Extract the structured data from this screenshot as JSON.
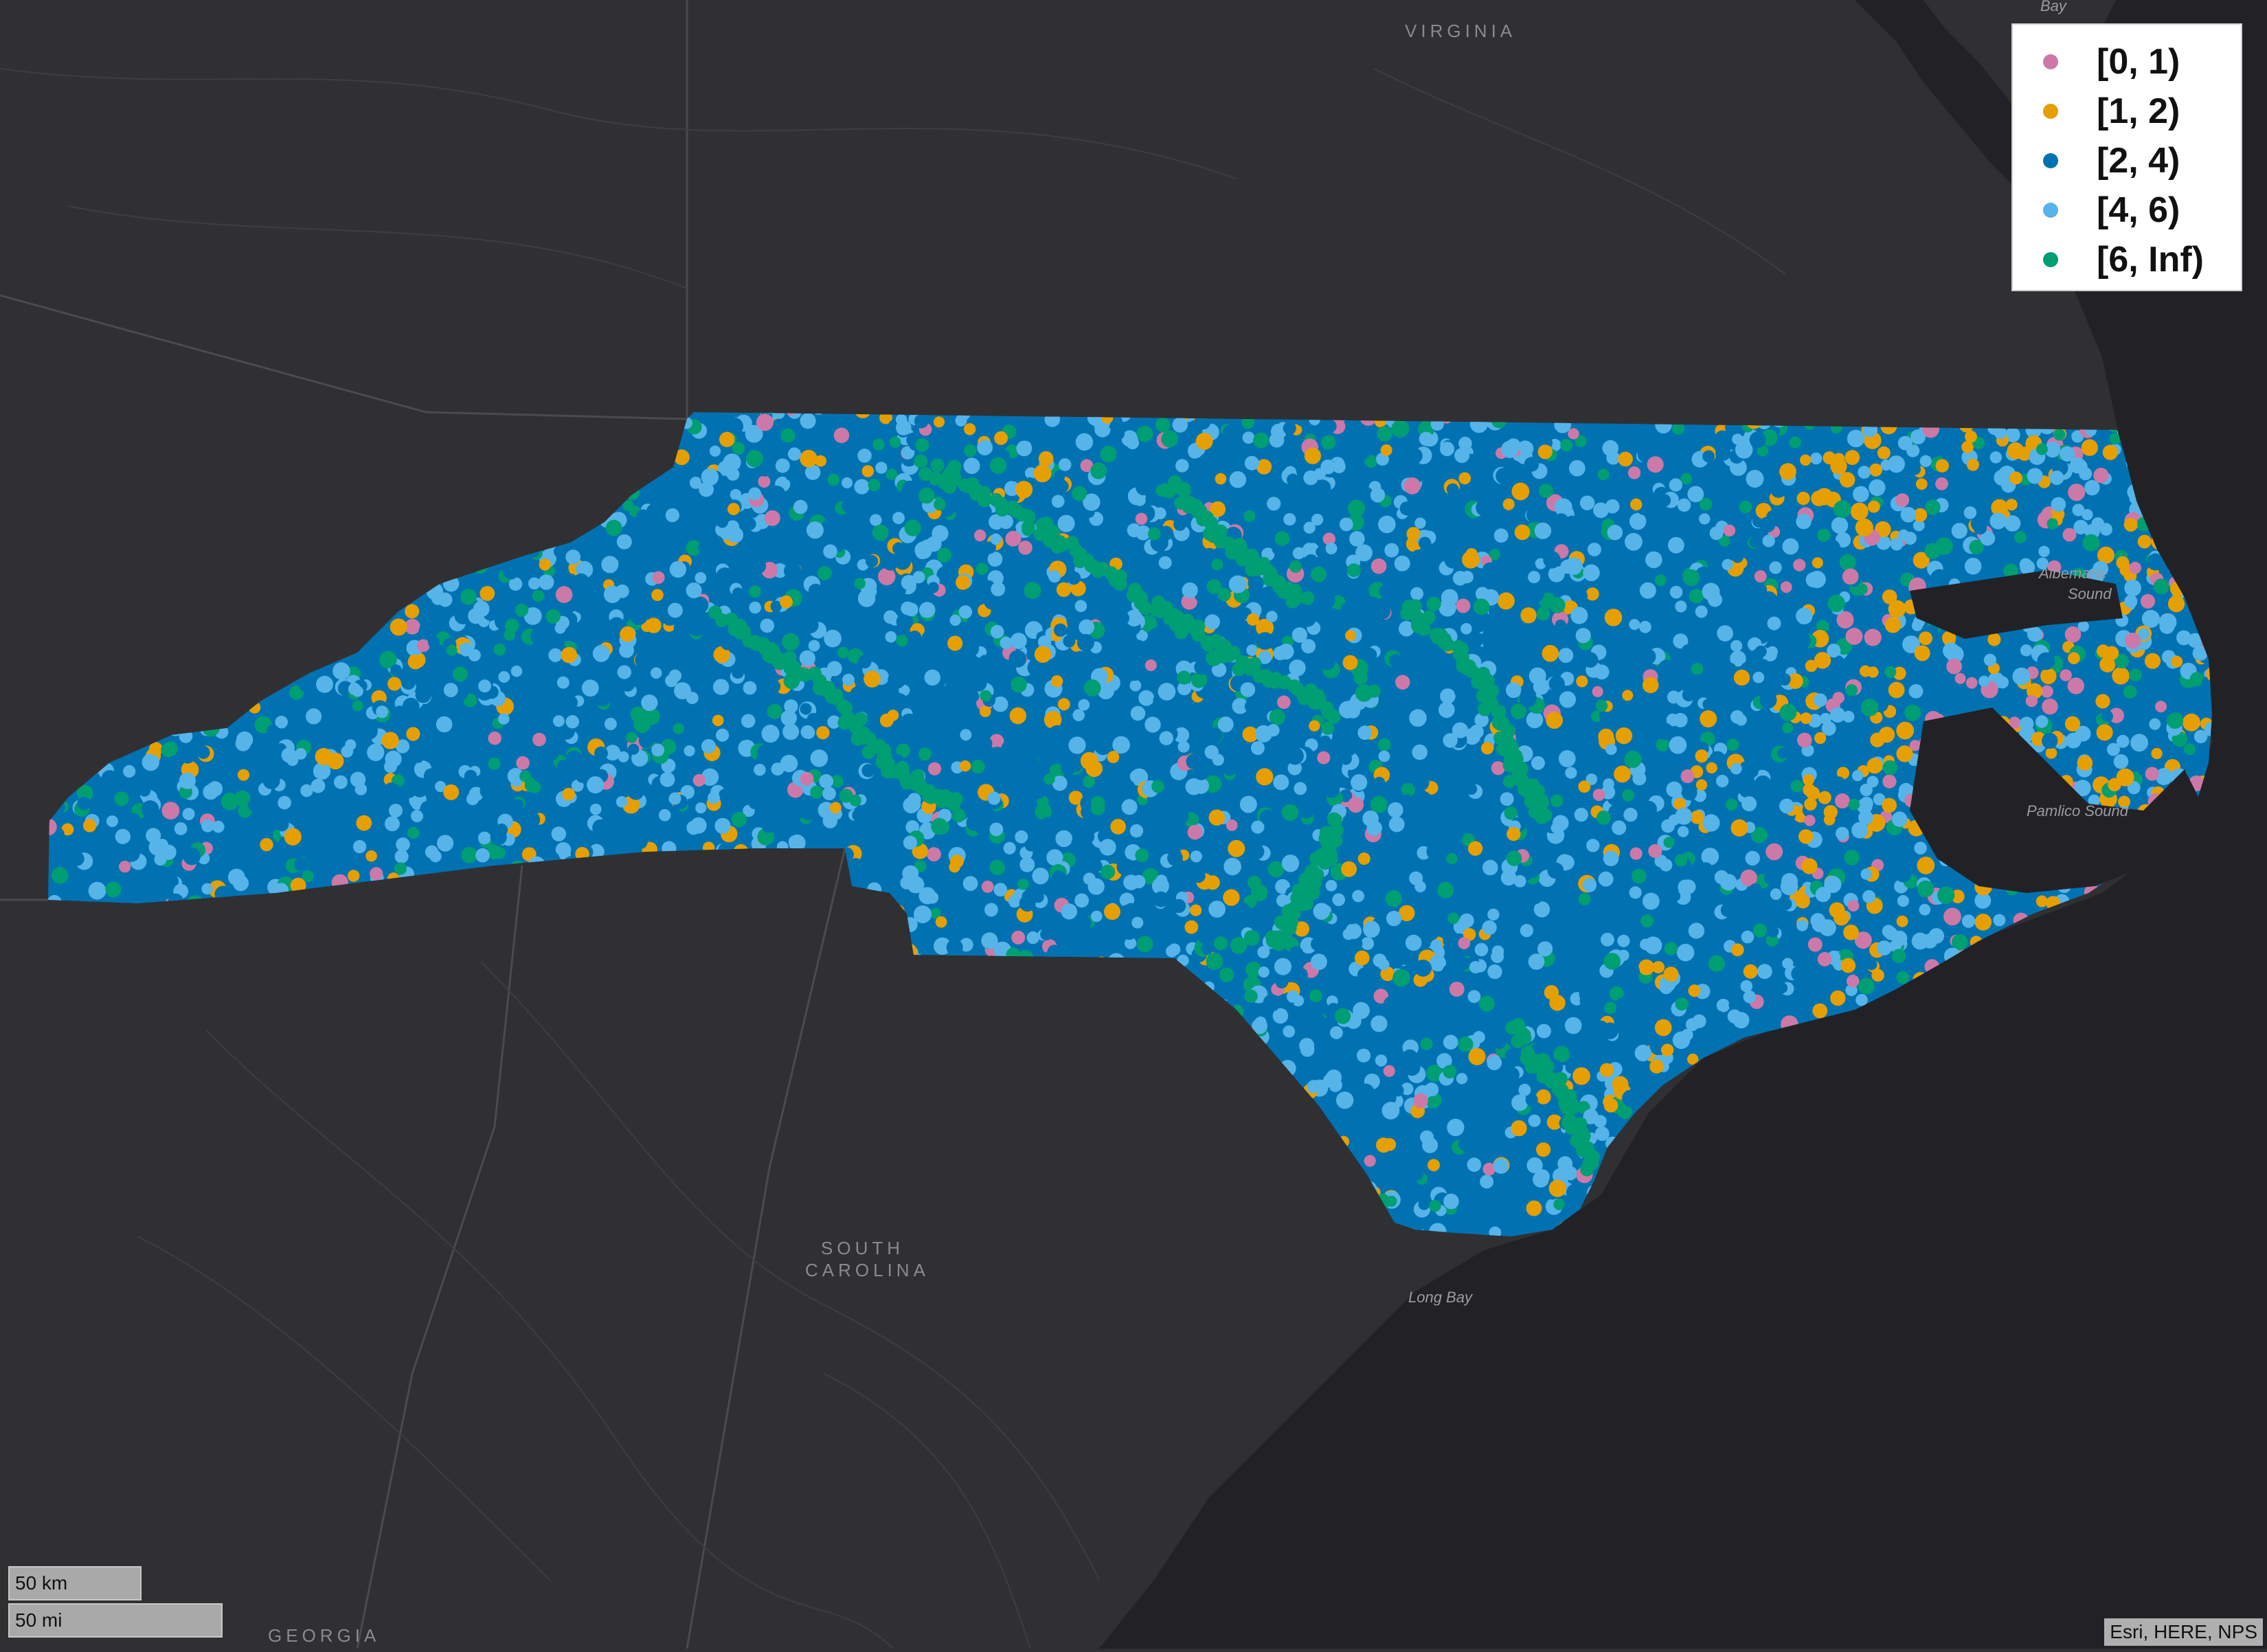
{
  "map": {
    "labels": {
      "virginia": "VIRGINIA",
      "south_carolina_1": "SOUTH",
      "south_carolina_2": "CAROLINA",
      "georgia": "GEORGIA",
      "long_bay": "Long Bay",
      "pamlico_sound": "Pamlico Sound",
      "albemarle_1": "Albemarle",
      "albemarle_2": "Sound",
      "bay": "Bay"
    },
    "colors": {
      "land": "#303033",
      "water": "#222226",
      "state_fill": "#0072b2"
    }
  },
  "legend": {
    "items": [
      {
        "label": "[0, 1)",
        "color": "#cc79a7"
      },
      {
        "label": "[1, 2)",
        "color": "#e69f00"
      },
      {
        "label": "[2, 4)",
        "color": "#0072b2"
      },
      {
        "label": "[4, 6)",
        "color": "#56b4e9"
      },
      {
        "label": "[6, Inf)",
        "color": "#009e73"
      }
    ]
  },
  "scale": {
    "km_label": "50 km",
    "mi_label": "50 mi"
  },
  "attribution": "Esri, HERE, NPS"
}
